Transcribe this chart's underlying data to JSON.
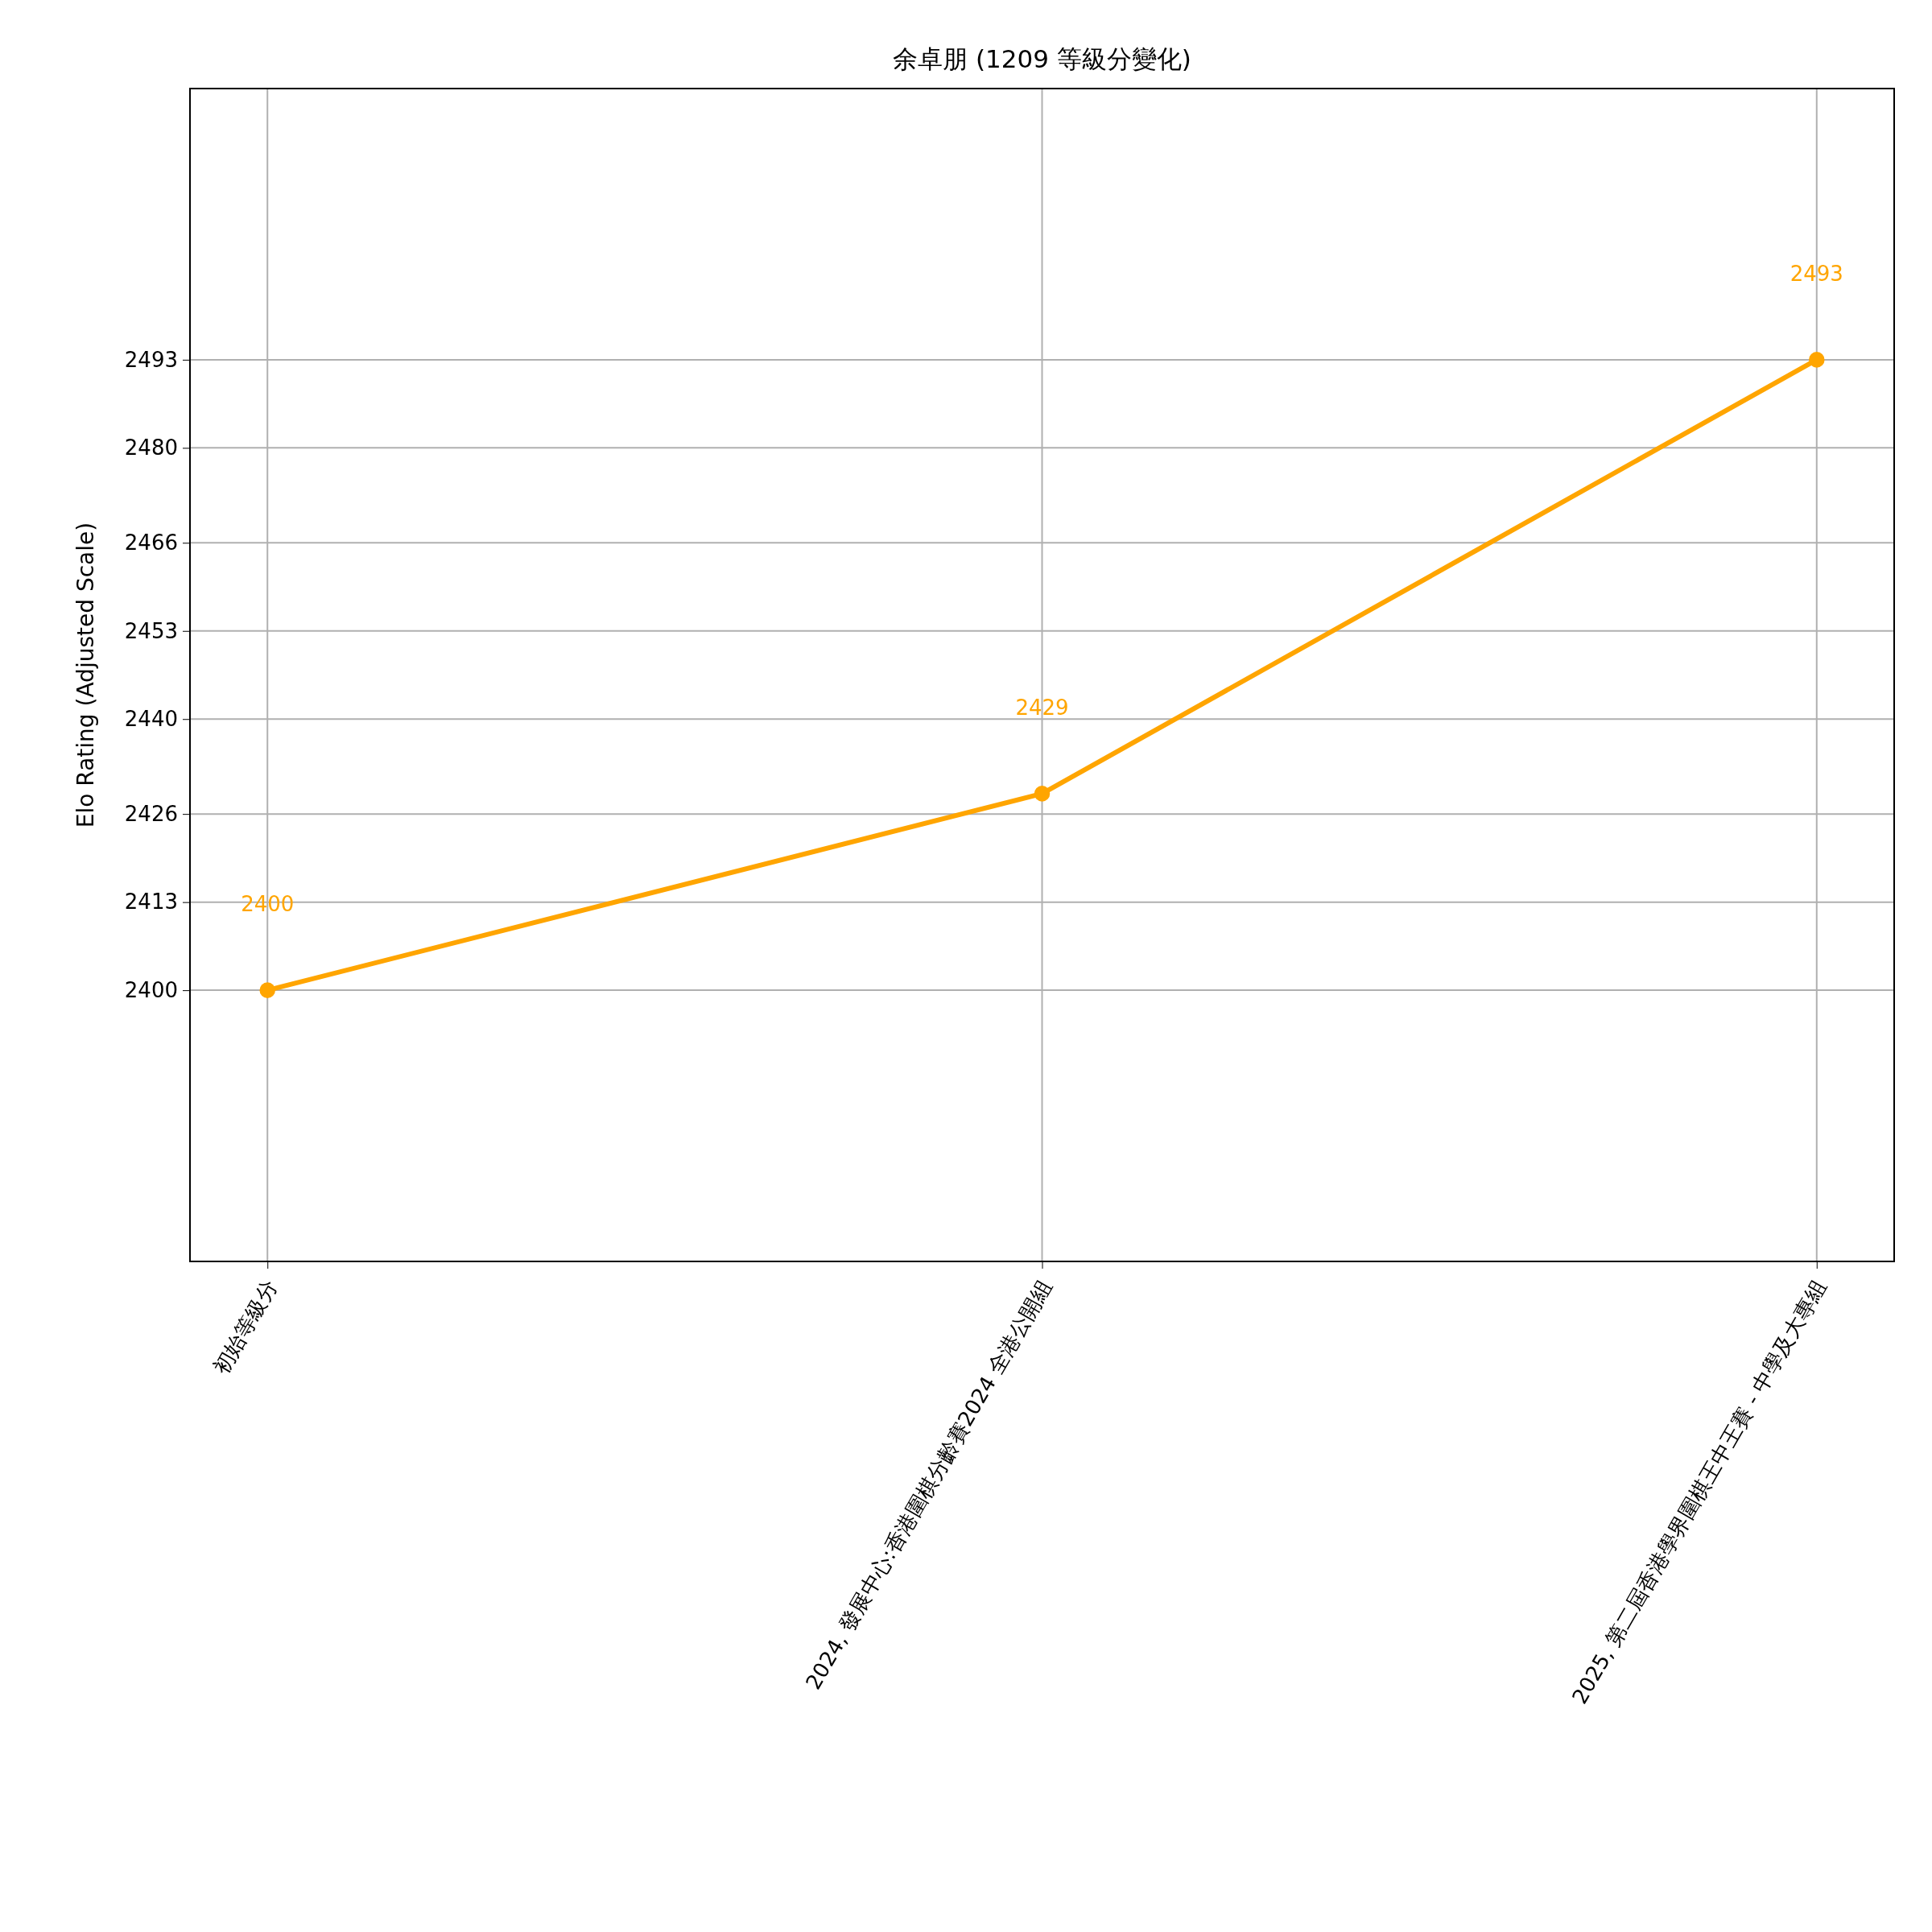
{
  "chart_data": {
    "type": "line",
    "title": "余卓朋 (1209 等級分變化)",
    "ylabel": "Elo Rating (Adjusted Scale)",
    "categories": [
      "初始等級分",
      "2024, 發展中心:香港圍棋分齡賽2024 全港公開組",
      "2025, 第二屆香港學界圍棋王中王賽 - 中學及大專組"
    ],
    "series": [
      {
        "color": "#ffa500",
        "values": [
          2400,
          2429,
          2493
        ]
      }
    ],
    "ylim": [
      2360,
      2533
    ],
    "yticks": [
      2400,
      2413,
      2426,
      2440,
      2453,
      2466,
      2480,
      2493
    ],
    "grid": true,
    "marker": "circle",
    "line_style": "solid",
    "data_labels": true
  }
}
